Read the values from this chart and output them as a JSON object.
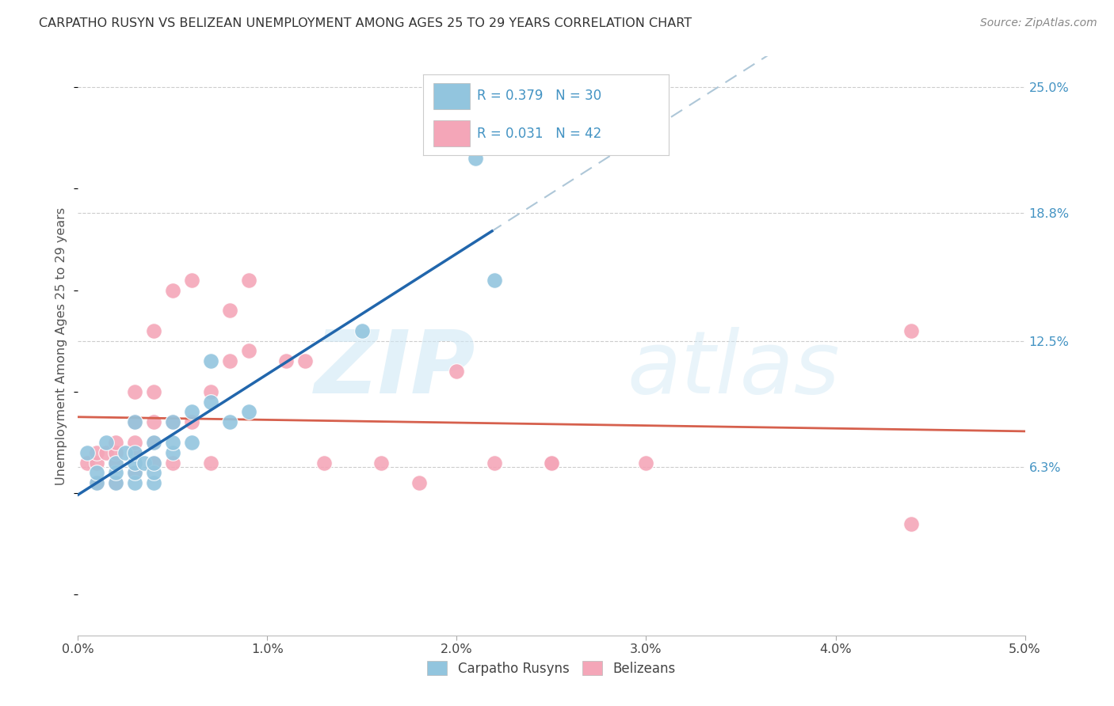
{
  "title": "CARPATHO RUSYN VS BELIZEAN UNEMPLOYMENT AMONG AGES 25 TO 29 YEARS CORRELATION CHART",
  "source": "Source: ZipAtlas.com",
  "ylabel": "Unemployment Among Ages 25 to 29 years",
  "xlim": [
    0.0,
    0.05
  ],
  "ylim": [
    -0.02,
    0.265
  ],
  "xtick_vals": [
    0.0,
    0.01,
    0.02,
    0.03,
    0.04,
    0.05
  ],
  "xtick_labels": [
    "0.0%",
    "1.0%",
    "2.0%",
    "3.0%",
    "4.0%",
    "5.0%"
  ],
  "right_ytick_positions": [
    0.063,
    0.125,
    0.188,
    0.25
  ],
  "right_ytick_labels": [
    "6.3%",
    "12.5%",
    "18.8%",
    "25.0%"
  ],
  "grid_lines": [
    0.063,
    0.125,
    0.188,
    0.25
  ],
  "legend_R1": "0.379",
  "legend_N1": "30",
  "legend_R2": "0.031",
  "legend_N2": "42",
  "color_blue": "#92c5de",
  "color_pink": "#f4a6b8",
  "color_blue_text": "#4393c3",
  "color_trend_blue": "#2166ac",
  "color_trend_pink": "#d6604d",
  "color_dashed": "#aec7d8",
  "color_grid": "#cccccc",
  "color_title": "#333333",
  "color_source": "#888888",
  "color_axis_label": "#555555",
  "color_tick_label": "#4393c3",
  "blue_x": [
    0.0005,
    0.001,
    0.001,
    0.0015,
    0.002,
    0.002,
    0.002,
    0.0025,
    0.003,
    0.003,
    0.003,
    0.003,
    0.003,
    0.0035,
    0.004,
    0.004,
    0.004,
    0.004,
    0.005,
    0.005,
    0.005,
    0.006,
    0.006,
    0.007,
    0.007,
    0.008,
    0.009,
    0.015,
    0.021,
    0.022
  ],
  "blue_y": [
    0.07,
    0.055,
    0.06,
    0.075,
    0.055,
    0.06,
    0.065,
    0.07,
    0.055,
    0.06,
    0.065,
    0.07,
    0.085,
    0.065,
    0.055,
    0.06,
    0.065,
    0.075,
    0.07,
    0.075,
    0.085,
    0.075,
    0.09,
    0.095,
    0.115,
    0.085,
    0.09,
    0.13,
    0.215,
    0.155
  ],
  "pink_x": [
    0.0005,
    0.001,
    0.001,
    0.001,
    0.0015,
    0.002,
    0.002,
    0.002,
    0.002,
    0.003,
    0.003,
    0.003,
    0.003,
    0.003,
    0.004,
    0.004,
    0.004,
    0.004,
    0.004,
    0.005,
    0.005,
    0.005,
    0.006,
    0.006,
    0.007,
    0.007,
    0.008,
    0.008,
    0.009,
    0.009,
    0.011,
    0.012,
    0.013,
    0.016,
    0.018,
    0.02,
    0.022,
    0.025,
    0.025,
    0.03,
    0.044,
    0.044
  ],
  "pink_y": [
    0.065,
    0.055,
    0.065,
    0.07,
    0.07,
    0.055,
    0.065,
    0.07,
    0.075,
    0.06,
    0.07,
    0.075,
    0.085,
    0.1,
    0.065,
    0.075,
    0.085,
    0.1,
    0.13,
    0.065,
    0.085,
    0.15,
    0.085,
    0.155,
    0.065,
    0.1,
    0.115,
    0.14,
    0.12,
    0.155,
    0.115,
    0.115,
    0.065,
    0.065,
    0.055,
    0.11,
    0.065,
    0.065,
    0.065,
    0.065,
    0.035,
    0.13
  ],
  "watermark_zip_color": "#d0e8f5",
  "watermark_atlas_color": "#d0e8f5"
}
